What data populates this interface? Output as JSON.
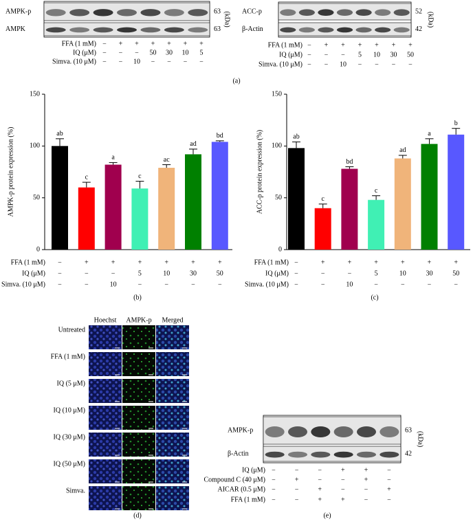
{
  "panel_a": {
    "label": "(a)",
    "blots": [
      {
        "bands": [
          {
            "label": "AMPK-p",
            "kda": 63
          },
          {
            "label": "AMPK",
            "kda": 63
          }
        ],
        "unit": "(kDa)",
        "treatments": [
          {
            "label": "FFA (1 mM)",
            "values": [
              "−",
              "+",
              "+",
              "+",
              "+",
              "+",
              "+"
            ]
          },
          {
            "label": "IQ (μM)",
            "values": [
              "−",
              "−",
              "−",
              "50",
              "30",
              "10",
              "5"
            ]
          },
          {
            "label": "Simva. (10 μM)",
            "values": [
              "−",
              "−",
              "10",
              "−",
              "−",
              "−",
              "−"
            ]
          }
        ]
      },
      {
        "bands": [
          {
            "label": "ACC-p",
            "kda": 52
          },
          {
            "label": "β-Actin",
            "kda": 42
          }
        ],
        "unit": "(kDa)",
        "treatments": [
          {
            "label": "FFA (1 mM)",
            "values": [
              "−",
              "+",
              "+",
              "+",
              "+",
              "+",
              "+"
            ]
          },
          {
            "label": "IQ (μM)",
            "values": [
              "−",
              "−",
              "−",
              "5",
              "10",
              "30",
              "50"
            ]
          },
          {
            "label": "Simva. (10 μM)",
            "values": [
              "−",
              "−",
              "10",
              "−",
              "−",
              "−",
              "−"
            ]
          }
        ]
      }
    ]
  },
  "chart_data": [
    {
      "type": "bar",
      "panel_label": "(b)",
      "y_label": "AMPK-p protein expression (%)",
      "values": [
        100,
        60,
        82,
        59,
        79,
        92,
        104
      ],
      "errors": [
        7,
        5,
        2,
        7,
        3,
        5,
        1
      ],
      "annotations": [
        "ab",
        "c",
        "a",
        "c",
        "ac",
        "ad",
        "bd"
      ],
      "colors": [
        "#000000",
        "#ff0000",
        "#a0004e",
        "#40f0b4",
        "#f0b47a",
        "#008000",
        "#5858ff"
      ],
      "ylim": [
        0,
        150
      ],
      "yticks": [
        0,
        50,
        100,
        150
      ],
      "treatments": [
        {
          "label": "FFA (1 mM)",
          "values": [
            "−",
            "+",
            "+",
            "+",
            "+",
            "+",
            "+"
          ]
        },
        {
          "label": "IQ (μM)",
          "values": [
            "−",
            "−",
            "−",
            "5",
            "10",
            "30",
            "50"
          ]
        },
        {
          "label": "Simva. (10 μM)",
          "values": [
            "−",
            "−",
            "10",
            "−",
            "−",
            "−",
            "−"
          ]
        }
      ]
    },
    {
      "type": "bar",
      "panel_label": "(c)",
      "y_label": "ACC-p protein expression (%)",
      "values": [
        98,
        40,
        78,
        48,
        88,
        102,
        111
      ],
      "errors": [
        6,
        4,
        2,
        4,
        3,
        5,
        6
      ],
      "annotations": [
        "ab",
        "c",
        "bd",
        "c",
        "ad",
        "a",
        "b"
      ],
      "colors": [
        "#000000",
        "#ff0000",
        "#a0004e",
        "#40f0b4",
        "#f0b47a",
        "#008000",
        "#5858ff"
      ],
      "ylim": [
        0,
        150
      ],
      "yticks": [
        0,
        50,
        100,
        150
      ],
      "treatments": [
        {
          "label": "FFA (1 mM)",
          "values": [
            "−",
            "+",
            "+",
            "+",
            "+",
            "+",
            "+"
          ]
        },
        {
          "label": "IQ (μM)",
          "values": [
            "−",
            "−",
            "−",
            "5",
            "10",
            "30",
            "50"
          ]
        },
        {
          "label": "Simva. (10 μM)",
          "values": [
            "−",
            "−",
            "10",
            "−",
            "−",
            "−",
            "−"
          ]
        }
      ]
    }
  ],
  "panel_d": {
    "label": "(d)",
    "columns": [
      "Hoechst",
      "AMPK-p",
      "Merged"
    ],
    "rows": [
      "Untreated",
      "FFA (1 mM)",
      "IQ (5 μM)",
      "IQ (10 μM)",
      "IQ (30 μM)",
      "IQ (50 μM)",
      "Simva."
    ]
  },
  "panel_e": {
    "label": "(e)",
    "bands": [
      {
        "label": "AMPK-p",
        "kda": 63
      },
      {
        "label": "β-Actin",
        "kda": 42
      }
    ],
    "unit": "(kDa)",
    "treatments": [
      {
        "label": "IQ (μM)",
        "values": [
          "−",
          "−",
          "−",
          "+",
          "+",
          "−"
        ]
      },
      {
        "label": "Compound C (40 μM)",
        "values": [
          "−",
          "+",
          "−",
          "−",
          "+",
          "−"
        ]
      },
      {
        "label": "AICAR (0.5 μM)",
        "values": [
          "−",
          "−",
          "+",
          "−",
          "−",
          "+"
        ]
      },
      {
        "label": "FFA (1 mM)",
        "values": [
          "−",
          "−",
          "+",
          "+",
          "−",
          "−"
        ]
      }
    ]
  }
}
